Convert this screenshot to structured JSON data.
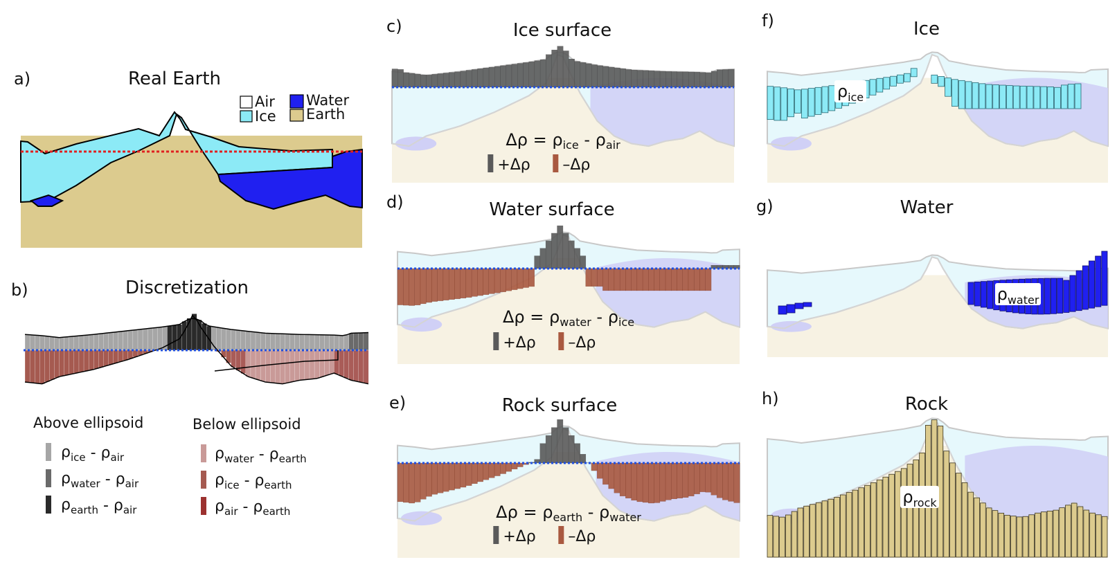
{
  "panels": {
    "a": {
      "label": "a)",
      "title": "Real Earth"
    },
    "b": {
      "label": "b)",
      "title": "Discretization"
    },
    "c": {
      "label": "c)",
      "title": "Ice surface"
    },
    "d": {
      "label": "d)",
      "title": "Water surface"
    },
    "e": {
      "label": "e)",
      "title": "Rock surface"
    },
    "f": {
      "label": "f)",
      "title": "Ice"
    },
    "g": {
      "label": "g)",
      "title": "Water"
    },
    "h": {
      "label": "h)",
      "title": "Rock"
    }
  },
  "legend_a": {
    "air": "Air",
    "water": "Water",
    "ice": "Ice",
    "earth": "Earth"
  },
  "legend_b": {
    "above_title": "Above ellipsoid",
    "below_title": "Below ellipsoid",
    "above": [
      {
        "rho1": "ice",
        "rho2": "air"
      },
      {
        "rho1": "water",
        "rho2": "air"
      },
      {
        "rho1": "earth",
        "rho2": "air"
      }
    ],
    "below": [
      {
        "rho1": "water",
        "rho2": "earth"
      },
      {
        "rho1": "ice",
        "rho2": "earth"
      },
      {
        "rho1": "air",
        "rho2": "earth"
      }
    ]
  },
  "symbols": {
    "rho": "ρ",
    "delta_rho": "Δρ",
    "equals": " = ",
    "minus": " - ",
    "plus_delta": "+Δρ",
    "minus_delta": "–Δρ"
  },
  "equations": {
    "c": {
      "a": "ice",
      "b": "air"
    },
    "d": {
      "a": "water",
      "b": "ice"
    },
    "e": {
      "a": "earth",
      "b": "water"
    }
  },
  "density_labels": {
    "f": "ice",
    "g": "water",
    "h": "rock"
  },
  "colors": {
    "ice": "#8ceaf6",
    "water": "#2020f0",
    "earth": "#dccb8e",
    "air": "#ffffff",
    "ice_light": "#e6f8fc",
    "water_light": "#d0d0f6",
    "earth_light": "#f7f2e3",
    "pos": "#5a5a5a",
    "neg": "#a95940",
    "ellipsoid": "#1f4fe0",
    "sea_red": "#e02020"
  }
}
